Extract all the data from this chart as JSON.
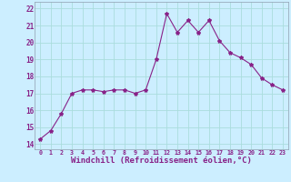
{
  "x": [
    0,
    1,
    2,
    3,
    4,
    5,
    6,
    7,
    8,
    9,
    10,
    11,
    12,
    13,
    14,
    15,
    16,
    17,
    18,
    19,
    20,
    21,
    22,
    23
  ],
  "y": [
    14.3,
    14.8,
    15.8,
    17.0,
    17.2,
    17.2,
    17.1,
    17.2,
    17.2,
    17.0,
    17.2,
    19.0,
    21.7,
    20.6,
    21.3,
    20.6,
    21.3,
    20.1,
    19.4,
    19.1,
    18.7,
    17.9,
    17.5,
    17.2
  ],
  "line_color": "#882288",
  "marker": "*",
  "marker_size": 3,
  "bg_color": "#cceeff",
  "grid_color": "#aadddd",
  "xlabel": "Windchill (Refroidissement éolien,°C)",
  "xlabel_fontsize": 6.5,
  "ylabel_ticks": [
    14,
    15,
    16,
    17,
    18,
    19,
    20,
    21,
    22
  ],
  "xlim": [
    -0.5,
    23.5
  ],
  "ylim": [
    13.7,
    22.4
  ]
}
